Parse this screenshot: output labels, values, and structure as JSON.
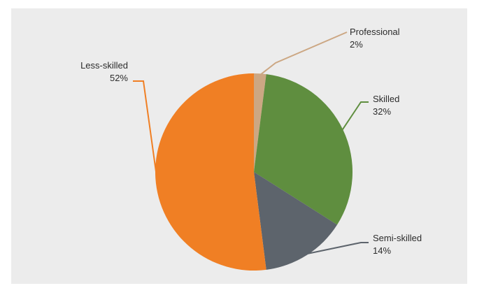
{
  "chart_data": {
    "type": "pie",
    "slices": [
      {
        "label": "Professional",
        "percent_label": "2%",
        "value": 2,
        "color": "#cca783"
      },
      {
        "label": "Skilled",
        "percent_label": "32%",
        "value": 32,
        "color": "#5f8e3f"
      },
      {
        "label": "Semi-skilled",
        "percent_label": "14%",
        "value": 14,
        "color": "#5d646c"
      },
      {
        "label": "Less-skilled",
        "percent_label": "52%",
        "value": 52,
        "color": "#f07f24"
      }
    ],
    "start_angle_deg": 0,
    "direction": "clockwise",
    "background": "#ececec"
  }
}
